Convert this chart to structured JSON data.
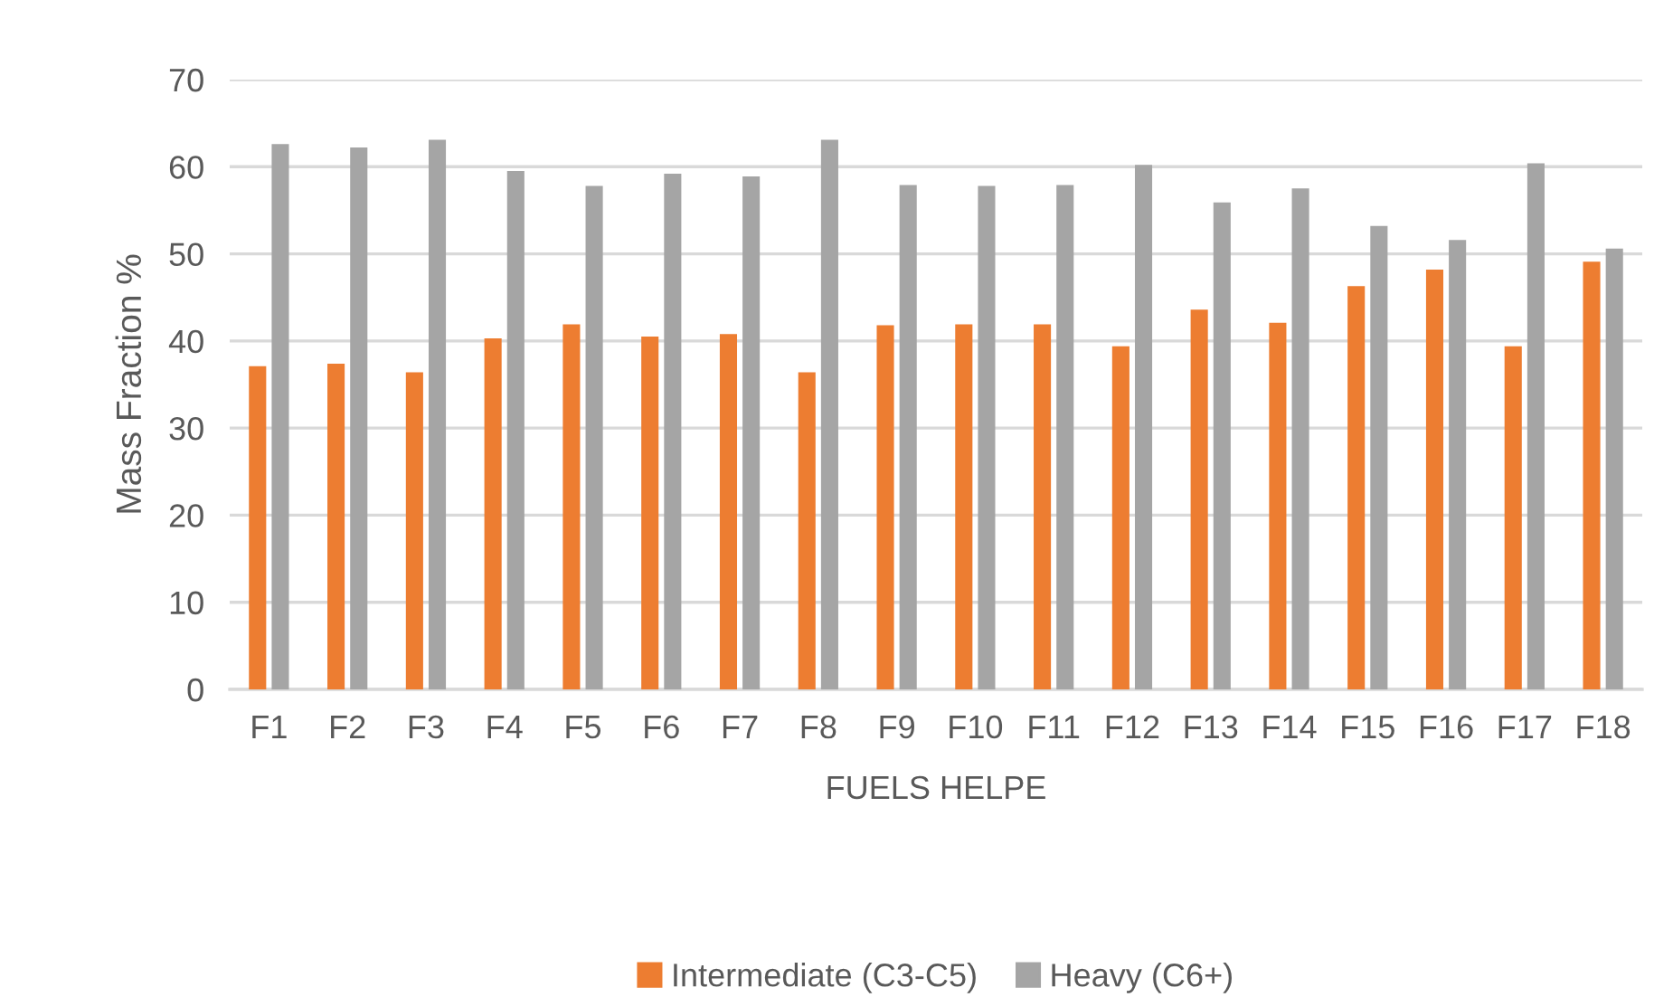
{
  "chart_data": {
    "type": "bar",
    "xlabel": "FUELS HELPE",
    "ylabel": "Mass Fraction %",
    "categories": [
      "F1",
      "F2",
      "F3",
      "F4",
      "F5",
      "F6",
      "F7",
      "F8",
      "F9",
      "F10",
      "F11",
      "F12",
      "F13",
      "F14",
      "F15",
      "F16",
      "F17",
      "F18"
    ],
    "series": [
      {
        "name": "Intermediate (C3-C5)",
        "color": "#ed7d31",
        "values": [
          37.1,
          37.4,
          36.4,
          40.3,
          41.9,
          40.5,
          40.8,
          36.4,
          41.8,
          41.9,
          41.9,
          39.4,
          43.6,
          42.1,
          46.3,
          48.2,
          39.4,
          49.1
        ]
      },
      {
        "name": "Heavy (C6+)",
        "color": "#a5a5a5",
        "values": [
          62.6,
          62.2,
          63.1,
          59.5,
          57.8,
          59.2,
          58.9,
          63.1,
          57.9,
          57.8,
          57.9,
          60.2,
          55.9,
          57.5,
          53.2,
          51.6,
          60.4,
          50.6
        ]
      }
    ],
    "ylim": [
      0,
      70
    ],
    "yticks": [
      0,
      10,
      20,
      30,
      40,
      50,
      60,
      70
    ],
    "grid": "y",
    "legend": "bottom"
  }
}
